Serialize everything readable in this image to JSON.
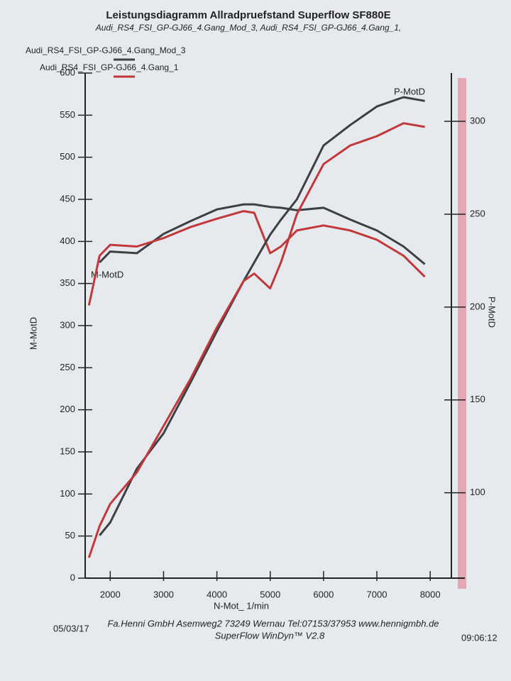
{
  "chart_data": {
    "type": "line",
    "title": "Leistungsdiagramm Allradpruefstand Superflow SF880E",
    "subtitle": "Audi_RS4_FSI_GP-GJ66_4.Gang_Mod_3, Audi_RS4_FSI_GP-GJ66_4.Gang_1,",
    "x_label": "N-Mot_ 1/min",
    "y_label": "M-MotD",
    "y2_label": "P-MotD",
    "annotations": [
      "M-MotD",
      "P-MotD"
    ],
    "footer": "Fa.Henni GmbH  Asemweg2  73249 Wernau  Tel:07153/37953  www.hennigmbh.de",
    "software": "SuperFlow WinDyn™ V2.8",
    "date": "05/03/17",
    "time": "09:06:12",
    "x": [
      1600,
      1800,
      2000,
      2500,
      3000,
      3500,
      4000,
      4500,
      4700,
      5000,
      5200,
      5500,
      6000,
      6500,
      7000,
      7500,
      7900
    ],
    "xlim": [
      1530,
      8650
    ],
    "xticks": [
      2000,
      3000,
      4000,
      5000,
      6000,
      7000,
      8000
    ],
    "ylim": [
      0,
      600
    ],
    "yticks": [
      0,
      50,
      100,
      150,
      200,
      250,
      300,
      350,
      400,
      450,
      500,
      550,
      600
    ],
    "y2lim": [
      54,
      326
    ],
    "y2ticks": [
      100,
      150,
      200,
      250,
      300
    ],
    "series": [
      {
        "name": "Audi_RS4_FSI_GP-GJ66_4.Gang_Mod_3",
        "color": "#3d3f44",
        "axis": "y",
        "values": [
          null,
          375,
          388,
          386,
          409,
          424,
          438,
          444,
          444,
          441,
          440,
          437,
          440,
          426,
          413,
          394,
          373
        ]
      },
      {
        "name": "Audi_RS4_FSI_GP-GJ66_4.Gang_1",
        "color": "#c2383a",
        "axis": "y",
        "values": [
          324,
          383,
          396,
          394,
          404,
          417,
          427,
          436,
          434,
          386,
          394,
          413,
          419,
          413,
          402,
          383,
          358
        ]
      },
      {
        "name": "Audi_RS4_FSI_GP-GJ66_4.Gang_Mod_3",
        "color": "#3d3f44",
        "axis": "y2",
        "values": [
          null,
          77,
          84,
          113,
          132,
          159,
          187,
          214,
          224,
          239,
          247,
          258,
          287,
          298,
          308,
          313,
          311
        ]
      },
      {
        "name": "Audi_RS4_FSI_GP-GJ66_4.Gang_1",
        "color": "#c2383a",
        "axis": "y2",
        "values": [
          65,
          82,
          94,
          111,
          136,
          161,
          189,
          214,
          218,
          210,
          224,
          250,
          277,
          287,
          292,
          299,
          297
        ]
      }
    ]
  }
}
